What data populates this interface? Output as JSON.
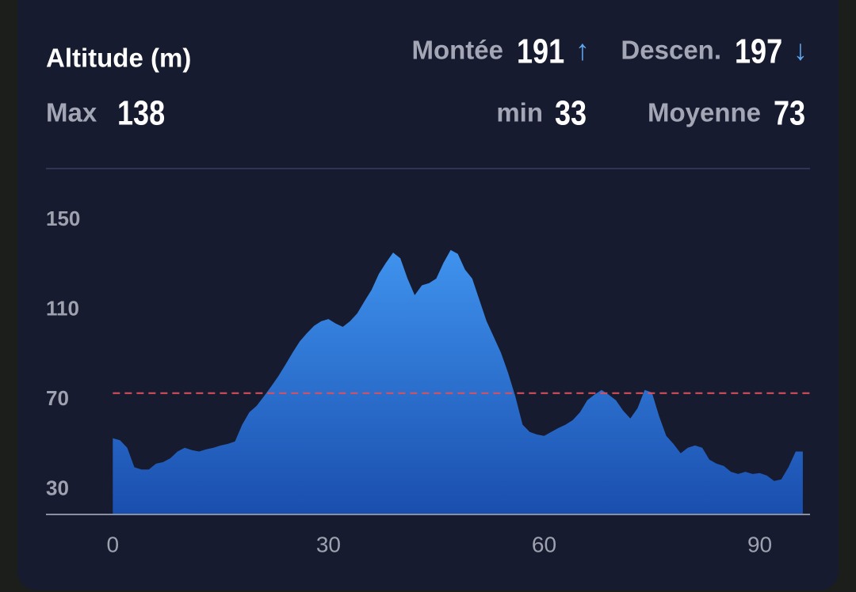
{
  "header": {
    "title": "Altitude (m)",
    "stats": [
      {
        "label": "Montée",
        "value": 191,
        "arrow": "↑"
      },
      {
        "label": "Descen.",
        "value": 197,
        "arrow": "↓"
      },
      {
        "label": "Max",
        "value": 138
      },
      {
        "label": "min",
        "value": 33
      },
      {
        "label": "Moyenne",
        "value": 73
      }
    ]
  },
  "chart_data": {
    "type": "area",
    "x": [
      0,
      1,
      2,
      3,
      4,
      5,
      6,
      7,
      8,
      9,
      10,
      11,
      12,
      13,
      14,
      15,
      16,
      17,
      18,
      19,
      20,
      21,
      22,
      23,
      24,
      25,
      26,
      27,
      28,
      29,
      30,
      31,
      32,
      33,
      34,
      35,
      36,
      37,
      38,
      39,
      40,
      41,
      42,
      43,
      44,
      45,
      46,
      47,
      48,
      49,
      50,
      51,
      52,
      53,
      54,
      55,
      56,
      57,
      58,
      59,
      60,
      61,
      62,
      63,
      64,
      65,
      66,
      67,
      68,
      69,
      70,
      71,
      72,
      73,
      74,
      75,
      76,
      77,
      78,
      79,
      80,
      81,
      82,
      83,
      84,
      85,
      86,
      87,
      88,
      89,
      90,
      91,
      92,
      93,
      94,
      95,
      96
    ],
    "values": [
      52.9,
      52,
      48.7,
      40,
      39,
      39,
      41.6,
      42.3,
      44,
      47,
      48.7,
      47.6,
      47,
      48,
      48.7,
      49.7,
      50.4,
      51.5,
      59,
      64.5,
      67.3,
      71.5,
      75.8,
      80.4,
      85.6,
      91,
      96,
      99.7,
      103,
      105,
      106,
      104,
      102.5,
      105,
      108.5,
      113.8,
      119,
      126,
      131,
      135.6,
      133,
      124,
      116.6,
      121,
      122,
      124,
      131,
      136.7,
      135,
      128,
      124,
      114.5,
      105,
      98,
      91,
      82,
      71.5,
      59,
      55.7,
      54.6,
      54,
      55.7,
      57.5,
      59,
      61,
      64.5,
      69.8,
      72.3,
      74.4,
      72.3,
      69.8,
      65.2,
      61.7,
      66.3,
      74.4,
      73.3,
      62.7,
      54,
      50.4,
      46.2,
      48.7,
      49.7,
      48.7,
      43.4,
      41.6,
      40.6,
      38,
      37,
      38,
      37,
      37.4,
      36.3,
      33.9,
      34.6,
      40,
      47,
      47
    ],
    "color": "#3a8ae6",
    "average_color": "#e0505a",
    "xlim": [
      -9.3,
      97
    ],
    "ylim": [
      19,
      155
    ],
    "xticks": [
      0,
      30,
      60,
      90
    ],
    "yticks": [
      30,
      70,
      110,
      150
    ]
  }
}
